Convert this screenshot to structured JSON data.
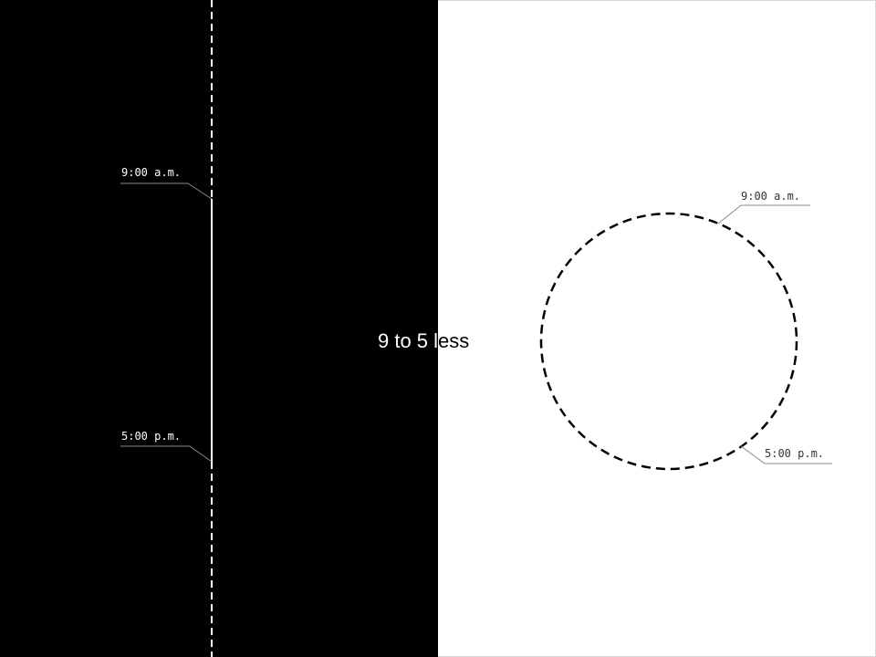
{
  "title": "9 to 5 less",
  "left_panel": {
    "start_label": "9:00 a.m.",
    "end_label": "5:00 p.m."
  },
  "right_panel": {
    "start_label": "9:00 a.m.",
    "end_label": "5:00 p.m."
  },
  "colors": {
    "left_background": "#000000",
    "right_background": "#ffffff",
    "left_stroke": "#ffffff",
    "right_stroke": "#000000",
    "leader_line": "#8a8a8a"
  }
}
